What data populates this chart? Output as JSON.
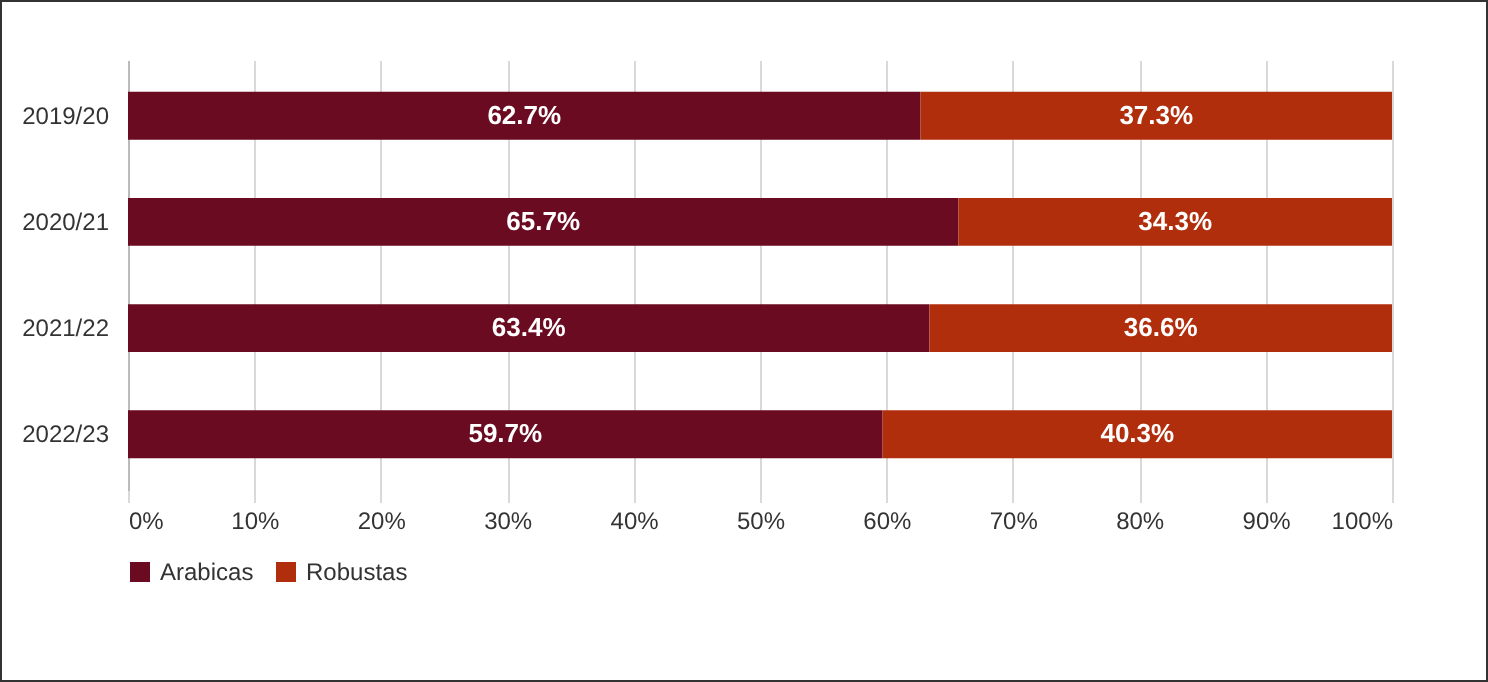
{
  "chart_data": {
    "type": "bar",
    "orientation": "horizontal",
    "stacked": true,
    "categories": [
      "2019/20",
      "2020/21",
      "2021/22",
      "2022/23"
    ],
    "series": [
      {
        "name": "Arabicas",
        "color": "#6b0b22",
        "values": [
          62.7,
          65.7,
          63.4,
          59.7
        ],
        "value_labels": [
          "62.7%",
          "65.7%",
          "63.4%",
          "59.7%"
        ]
      },
      {
        "name": "Robustas",
        "color": "#b02e0c",
        "values": [
          37.3,
          34.3,
          36.6,
          40.3
        ],
        "value_labels": [
          "37.3%",
          "34.3%",
          "36.6%",
          "40.3%"
        ]
      }
    ],
    "xlim": [
      0,
      100
    ],
    "xticks": [
      {
        "value": 0,
        "label": "0%"
      },
      {
        "value": 10,
        "label": "10%"
      },
      {
        "value": 20,
        "label": "20%"
      },
      {
        "value": 30,
        "label": "30%"
      },
      {
        "value": 40,
        "label": "40%"
      },
      {
        "value": 50,
        "label": "50%"
      },
      {
        "value": 60,
        "label": "60%"
      },
      {
        "value": 70,
        "label": "70%"
      },
      {
        "value": 80,
        "label": "80%"
      },
      {
        "value": 90,
        "label": "90%"
      },
      {
        "value": 100,
        "label": "100%"
      }
    ],
    "grid": "x",
    "legend": "bottom"
  }
}
